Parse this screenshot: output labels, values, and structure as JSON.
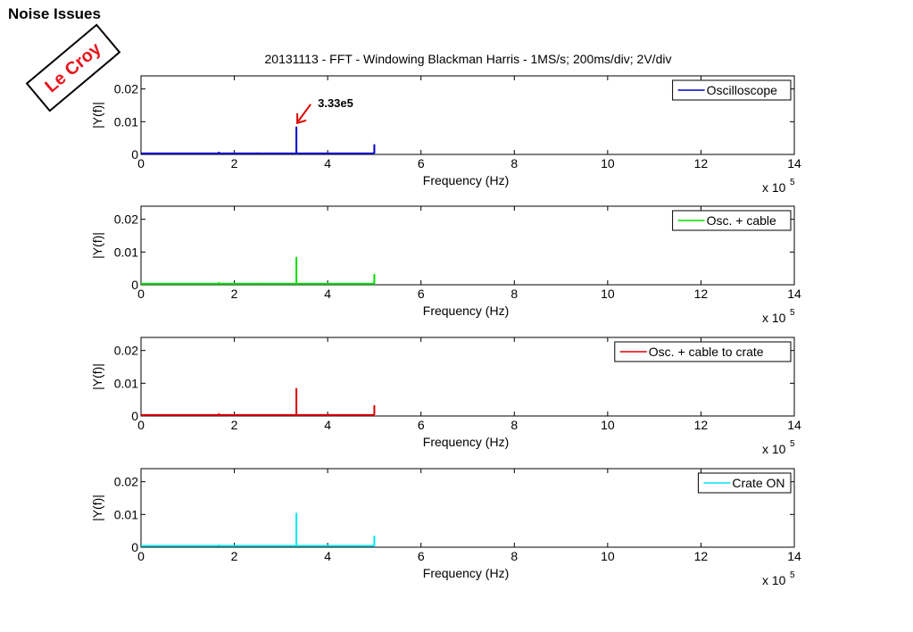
{
  "page": {
    "title": "Noise Issues",
    "stamp": "Le Croy"
  },
  "chart_data": {
    "type": "line",
    "title": "20131113 - FFT - Windowing Blackman Harris - 1MS/s; 200ms/div; 2V/div",
    "xlabel": "Frequency (Hz)",
    "ylabel": "|Y(f)|",
    "x_multiplier_label": "x 10",
    "x_multiplier_exponent": "5",
    "xlim": [
      0,
      14
    ],
    "ylim": [
      0,
      0.024
    ],
    "xticks": [
      0,
      2,
      4,
      6,
      8,
      10,
      12,
      14
    ],
    "yticks": [
      0,
      0.01,
      0.02
    ],
    "ytick_labels": [
      "0",
      "0.01",
      "0.02"
    ],
    "grid": false,
    "legend_position": "top-right",
    "annotation": {
      "text": "3.33e5",
      "x": 3.33,
      "y": 0.0085
    },
    "subplots": [
      {
        "name": "Oscilloscope",
        "color": "#0000c8",
        "baseline": 0.0003,
        "x_end": 5,
        "peaks": [
          {
            "x": 1.67,
            "y": 0.0008
          },
          {
            "x": 2.5,
            "y": 0.0006
          },
          {
            "x": 3.33,
            "y": 0.0085
          },
          {
            "x": 5.0,
            "y": 0.0031
          }
        ]
      },
      {
        "name": "Osc. + cable",
        "color": "#00e000",
        "baseline": 0.0003,
        "x_end": 5,
        "peaks": [
          {
            "x": 1.67,
            "y": 0.0008
          },
          {
            "x": 2.5,
            "y": 0.0006
          },
          {
            "x": 3.33,
            "y": 0.0085
          },
          {
            "x": 5.0,
            "y": 0.0033
          }
        ]
      },
      {
        "name": "Osc. + cable to crate",
        "color": "#dd0000",
        "baseline": 0.0003,
        "x_end": 5,
        "peaks": [
          {
            "x": 1.67,
            "y": 0.0008
          },
          {
            "x": 3.33,
            "y": 0.0085
          },
          {
            "x": 5.0,
            "y": 0.0033
          }
        ]
      },
      {
        "name": "Crate ON",
        "color": "#00e8f0",
        "baseline": 0.0004,
        "x_end": 5,
        "peaks": [
          {
            "x": 1.67,
            "y": 0.0008
          },
          {
            "x": 2.5,
            "y": 0.0006
          },
          {
            "x": 3.33,
            "y": 0.0105
          },
          {
            "x": 5.0,
            "y": 0.0035
          }
        ]
      }
    ]
  }
}
